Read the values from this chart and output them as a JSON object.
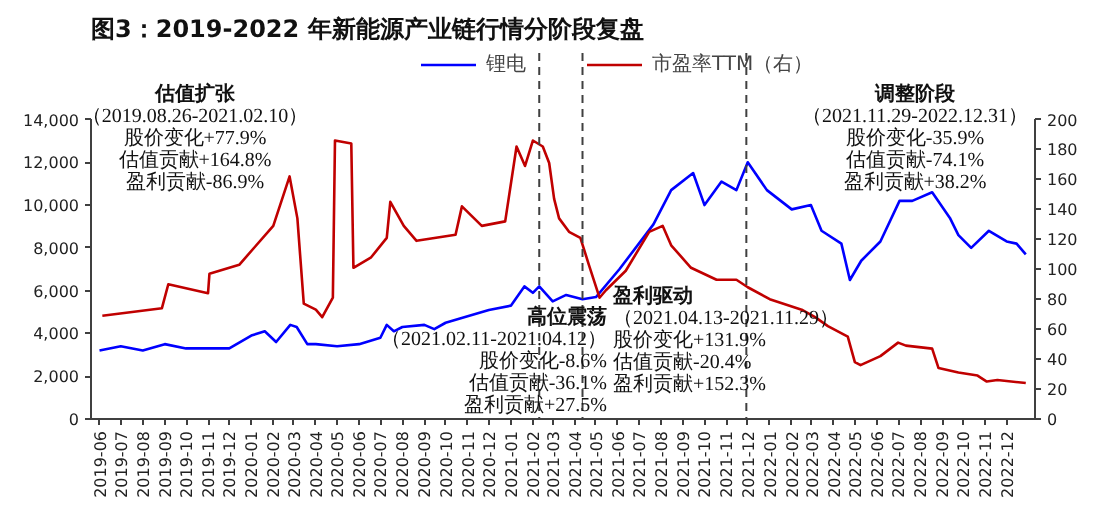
{
  "chart_data": {
    "type": "line",
    "title": "图3：2019-2022 年新能源产业链行情分阶段复盘",
    "xlim": [
      "2019-05-20",
      "2023-01-10"
    ],
    "xticks": [
      "2019-06",
      "2019-07",
      "2019-08",
      "2019-09",
      "2019-10",
      "2019-11",
      "2019-12",
      "2020-01",
      "2020-02",
      "2020-03",
      "2020-04",
      "2020-05",
      "2020-06",
      "2020-07",
      "2020-08",
      "2020-09",
      "2020-10",
      "2020-11",
      "2020-12",
      "2021-01",
      "2021-02",
      "2021-03",
      "2021-04",
      "2021-05",
      "2021-06",
      "2021-07",
      "2021-08",
      "2021-09",
      "2021-10",
      "2021-11",
      "2021-12",
      "2022-01",
      "2022-02",
      "2022-03",
      "2022-04",
      "2022-05",
      "2022-06",
      "2022-07",
      "2022-08",
      "2022-09",
      "2022-10",
      "2022-11",
      "2022-12"
    ],
    "ylim": [
      0,
      14000
    ],
    "yticks": [
      0,
      {
        "value": 2000,
        "label": "2,000"
      },
      {
        "value": 4000,
        "label": "4,000"
      },
      {
        "value": 6000,
        "label": "6,000"
      },
      {
        "value": 8000,
        "label": "8,000"
      },
      {
        "value": 10000,
        "label": "10,000"
      },
      {
        "value": 12000,
        "label": "12,000"
      },
      {
        "value": 14000,
        "label": "14,000"
      }
    ],
    "y2lim": [
      0,
      200
    ],
    "y2ticks": [
      0,
      20,
      40,
      60,
      80,
      100,
      120,
      140,
      160,
      180,
      200
    ],
    "legend": "top",
    "grid": false,
    "marker": "none",
    "line_style": "solid",
    "series": [
      {
        "name": "锂电",
        "color": "#0000ff",
        "x": [
          "2019-06-01",
          "2019-07-01",
          "2019-08-01",
          "2019-09-01",
          "2019-10-01",
          "2019-11-01",
          "2019-12-01",
          "2020-01-01",
          "2020-01-20",
          "2020-02-05",
          "2020-02-25",
          "2020-03-05",
          "2020-03-20",
          "2020-04-01",
          "2020-05-01",
          "2020-06-01",
          "2020-07-01",
          "2020-07-10",
          "2020-07-20",
          "2020-08-01",
          "2020-09-01",
          "2020-09-15",
          "2020-10-01",
          "2020-11-01",
          "2020-12-01",
          "2021-01-01",
          "2021-01-20",
          "2021-02-01",
          "2021-02-10",
          "2021-03-01",
          "2021-03-20",
          "2021-04-12",
          "2021-05-01",
          "2021-06-03",
          "2021-07-21",
          "2021-08-15",
          "2021-09-15",
          "2021-10-01",
          "2021-10-25",
          "2021-11-15",
          "2021-12-01",
          "2021-12-28",
          "2022-02-01",
          "2022-02-28",
          "2022-03-15",
          "2022-04-12",
          "2022-04-24",
          "2022-05-10",
          "2022-06-06",
          "2022-07-03",
          "2022-07-21",
          "2022-08-18",
          "2022-09-12",
          "2022-09-24",
          "2022-10-12",
          "2022-11-06",
          "2022-12-01",
          "2022-12-15",
          "2022-12-28"
        ],
        "values": [
          3200,
          3400,
          3200,
          3500,
          3300,
          3300,
          3300,
          3900,
          4100,
          3600,
          4400,
          4300,
          3500,
          3500,
          3400,
          3500,
          3800,
          4400,
          4100,
          4300,
          4400,
          4200,
          4500,
          4800,
          5100,
          5300,
          6200,
          5900,
          6200,
          5500,
          5800,
          5600,
          5700,
          7000,
          9100,
          10700,
          11500,
          10000,
          11100,
          10700,
          12000,
          10700,
          9800,
          10000,
          8800,
          8200,
          6500,
          7400,
          8300,
          10200,
          10200,
          10600,
          9400,
          8600,
          8000,
          8800,
          8300,
          8200,
          7700
        ]
      },
      {
        "name": "市盈率TTM（右）",
        "color": "#c00000",
        "axis": "y2",
        "x": [
          "2019-06-05",
          "2019-08-28",
          "2019-09-06",
          "2019-11-01",
          "2019-11-03",
          "2019-12-15",
          "2020-02-01",
          "2020-02-24",
          "2020-03-06",
          "2020-03-15",
          "2020-04-01",
          "2020-04-10",
          "2020-04-25",
          "2020-04-28",
          "2020-05-21",
          "2020-05-24",
          "2020-06-18",
          "2020-07-10",
          "2020-07-15",
          "2020-08-03",
          "2020-08-21",
          "2020-10-15",
          "2020-10-24",
          "2020-11-21",
          "2020-12-24",
          "2021-01-09",
          "2021-01-21",
          "2021-02-01",
          "2021-02-15",
          "2021-02-24",
          "2021-03-03",
          "2021-03-10",
          "2021-03-24",
          "2021-04-09",
          "2021-04-21",
          "2021-05-06",
          "2021-05-15",
          "2021-06-12",
          "2021-07-15",
          "2021-08-03",
          "2021-08-15",
          "2021-09-12",
          "2021-10-18",
          "2021-11-15",
          "2021-12-01",
          "2022-01-01",
          "2022-02-15",
          "2022-03-06",
          "2022-03-24",
          "2022-04-21",
          "2022-05-01",
          "2022-05-09",
          "2022-06-06",
          "2022-07-01",
          "2022-07-12",
          "2022-08-18",
          "2022-08-27",
          "2022-09-24",
          "2022-10-21",
          "2022-11-03",
          "2022-11-18",
          "2022-12-28"
        ],
        "values": [
          69,
          74,
          90,
          84,
          97,
          103,
          129,
          162,
          134,
          77,
          73,
          68,
          81,
          186,
          184,
          101,
          108,
          121,
          145,
          129,
          119,
          123,
          142,
          129,
          132,
          182,
          169,
          186,
          182,
          171,
          147,
          134,
          125,
          121,
          103,
          81,
          86,
          99,
          125,
          129,
          116,
          101,
          93,
          93,
          88,
          80,
          73,
          68,
          62,
          55,
          38,
          36,
          42,
          51,
          49,
          47,
          34,
          31,
          29,
          25,
          26,
          24
        ]
      }
    ],
    "ref_lines": [
      {
        "axis": "x",
        "value": "2021-02-10",
        "color": "#404040",
        "line_style": "dashed"
      },
      {
        "axis": "x",
        "value": "2021-04-12",
        "color": "#404040",
        "line_style": "dashed"
      },
      {
        "axis": "x",
        "value": "2021-11-29",
        "color": "#404040",
        "line_style": "dashed"
      }
    ],
    "annotations": [
      "估值扩张",
      "（2019.08.26-2021.02.10）",
      "股价变化+77.9%",
      "估值贡献+164.8%",
      "盈利贡献-86.9%",
      "高位震荡",
      "（2021.02.11-2021.04.12）",
      "股价变化-8.6%",
      "估值贡献-36.1%",
      "盈利贡献+27.5%",
      "盈利驱动",
      "（2021.04.13-2021.11.29）",
      "股价变化+131.9%",
      "估值贡献-20.4%",
      "盈利贡献+152.3%",
      "调整阶段",
      "（2021.11.29-2022.12.31）",
      "股价变化-35.9%",
      "估值贡献-74.1%",
      "盈利贡献+38.2%"
    ]
  }
}
